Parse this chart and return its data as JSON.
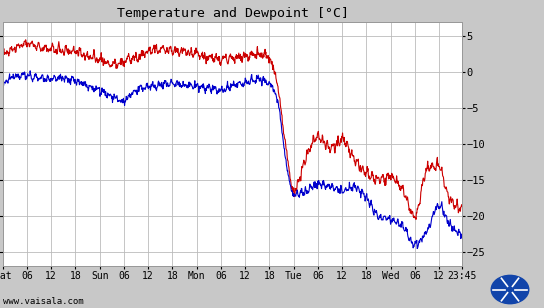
{
  "title": "Temperature and Dewpoint [°C]",
  "ylim": [
    -27,
    7
  ],
  "yticks": [
    5,
    0,
    -5,
    -10,
    -15,
    -20,
    -25
  ],
  "xlabel_text": "www.vaisala.com",
  "bg_color": "#c8c8c8",
  "plot_bg_color": "#ffffff",
  "grid_color": "#bbbbbb",
  "temp_color": "#cc0000",
  "dewp_color": "#0000cc",
  "x_tick_labels": [
    "Sat",
    "06",
    "12",
    "18",
    "Sun",
    "06",
    "12",
    "18",
    "Mon",
    "06",
    "12",
    "18",
    "Tue",
    "06",
    "12",
    "18",
    "Wed",
    "06",
    "12",
    "23:45"
  ],
  "x_tick_positions": [
    0,
    6,
    12,
    18,
    24,
    30,
    36,
    42,
    48,
    54,
    60,
    66,
    72,
    78,
    84,
    90,
    96,
    102,
    108,
    113.75
  ],
  "total_hours": 113.75,
  "line_width": 0.8
}
